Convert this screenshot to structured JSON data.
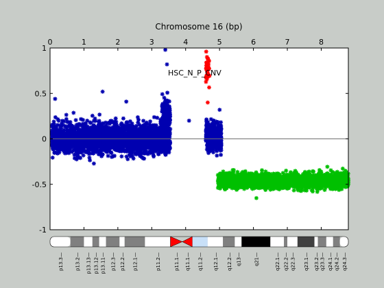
{
  "chart_data": {
    "type": "scatter",
    "title": "Chromosome 16 (bp)",
    "annotation": "HSC_N_P_CNV",
    "xlim": [
      0,
      8.8
    ],
    "ylim": [
      -1,
      1
    ],
    "xticks": [
      "0",
      "1",
      "2",
      "3",
      "4",
      "5",
      "6",
      "7",
      "8"
    ],
    "yticks": [
      "-1",
      "-0.5",
      "0",
      "0.5",
      "1"
    ],
    "grid": false,
    "baseline": 0,
    "colors": {
      "blue": "#0000b0",
      "red": "#ff0000",
      "green": "#00c000",
      "axes_bg": "#ffffff",
      "figure_bg": "#c8ccc8"
    },
    "series": [
      {
        "color": "blue",
        "x_range": [
          0.05,
          3.55
        ],
        "y_mean": 0.0,
        "y_spread": 0.16,
        "count": 2600
      },
      {
        "color": "blue",
        "x_range": [
          3.3,
          3.55
        ],
        "y_mean": 0.25,
        "y_spread": 0.18,
        "count": 140
      },
      {
        "color": "blue",
        "x_range": [
          4.6,
          5.05
        ],
        "y_mean": 0.02,
        "y_spread": 0.14,
        "count": 500
      },
      {
        "color": "red",
        "x_range": [
          4.6,
          4.7
        ],
        "y_mean": 0.75,
        "y_spread": 0.17,
        "count": 40
      },
      {
        "color": "green",
        "x_range": [
          4.95,
          8.8
        ],
        "y_mean": -0.46,
        "y_spread": 0.08,
        "count": 2300
      }
    ],
    "outliers": [
      {
        "color": "blue",
        "x": 0.15,
        "y": 0.44
      },
      {
        "color": "blue",
        "x": 1.55,
        "y": 0.52
      },
      {
        "color": "blue",
        "x": 2.25,
        "y": 0.41
      },
      {
        "color": "blue",
        "x": 3.4,
        "y": 0.98
      },
      {
        "color": "blue",
        "x": 3.45,
        "y": 0.82
      },
      {
        "color": "blue",
        "x": 4.1,
        "y": 0.2
      },
      {
        "color": "red",
        "x": 4.65,
        "y": 0.4
      }
    ]
  },
  "ideogram": {
    "bands": [
      {
        "label": "p13.3",
        "start": 0.0,
        "end": 0.6,
        "fill": "#ffffff"
      },
      {
        "label": "p13.2",
        "start": 0.6,
        "end": 1.0,
        "fill": "#808080"
      },
      {
        "label": "p13.13",
        "start": 1.0,
        "end": 1.25,
        "fill": "#ffffff"
      },
      {
        "label": "p13.12",
        "start": 1.25,
        "end": 1.45,
        "fill": "#808080"
      },
      {
        "label": "p13.11",
        "start": 1.45,
        "end": 1.65,
        "fill": "#ffffff"
      },
      {
        "label": "p12.3",
        "start": 1.65,
        "end": 2.05,
        "fill": "#808080"
      },
      {
        "label": "p12.2",
        "start": 2.05,
        "end": 2.2,
        "fill": "#ffffff"
      },
      {
        "label": "p12.1",
        "start": 2.2,
        "end": 2.8,
        "fill": "#808080"
      },
      {
        "label": "p11.2",
        "start": 2.8,
        "end": 3.55,
        "fill": "#ffffff"
      },
      {
        "label": "p11.1",
        "start": 3.55,
        "end": 3.9,
        "fill": "#ff0000",
        "centromere": "p"
      },
      {
        "label": "q11.1",
        "start": 3.9,
        "end": 4.2,
        "fill": "#ff0000",
        "centromere": "q"
      },
      {
        "label": "q11.2",
        "start": 4.2,
        "end": 4.65,
        "fill": "#c8e0f8"
      },
      {
        "label": "q12.1",
        "start": 4.65,
        "end": 5.1,
        "fill": "#ffffff"
      },
      {
        "label": "q12.2",
        "start": 5.1,
        "end": 5.45,
        "fill": "#808080"
      },
      {
        "label": "q13",
        "start": 5.45,
        "end": 5.65,
        "fill": "#ffffff"
      },
      {
        "label": "q21",
        "start": 5.65,
        "end": 6.5,
        "fill": "#000000"
      },
      {
        "label": "q22.1",
        "start": 6.5,
        "end": 6.9,
        "fill": "#ffffff"
      },
      {
        "label": "q22.2",
        "start": 6.9,
        "end": 7.0,
        "fill": "#808080"
      },
      {
        "label": "q22.3",
        "start": 7.0,
        "end": 7.3,
        "fill": "#ffffff"
      },
      {
        "label": "q23.1",
        "start": 7.3,
        "end": 7.8,
        "fill": "#404040"
      },
      {
        "label": "q23.2",
        "start": 7.8,
        "end": 7.9,
        "fill": "#ffffff"
      },
      {
        "label": "q23.3",
        "start": 7.9,
        "end": 8.15,
        "fill": "#808080"
      },
      {
        "label": "q24.1",
        "start": 8.15,
        "end": 8.35,
        "fill": "#ffffff"
      },
      {
        "label": "q24.2",
        "start": 8.35,
        "end": 8.55,
        "fill": "#808080"
      },
      {
        "label": "q24.3",
        "start": 8.55,
        "end": 8.8,
        "fill": "#ffffff"
      }
    ]
  }
}
